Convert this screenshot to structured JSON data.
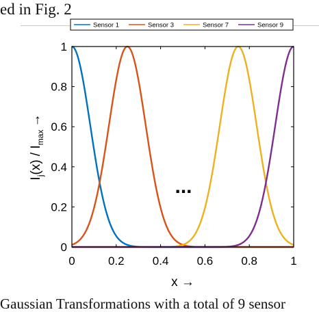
{
  "page": {
    "top_text": "ed in Fig. 2",
    "bottom_text": "Gaussian Transformations with a total of 9 sensor"
  },
  "chart_data": {
    "type": "line",
    "xlabel": "x →",
    "ylabel_main": "I",
    "ylabel_sub_j": "j",
    "ylabel_mid": "(x) / I",
    "ylabel_sub_max": "max",
    "ylabel_arrow": "→",
    "xlim": [
      0,
      1
    ],
    "ylim": [
      0,
      1
    ],
    "xticks": [
      0,
      0.2,
      0.4,
      0.6,
      0.8,
      1
    ],
    "xtick_labels": [
      "0",
      "0.2",
      "0.4",
      "0.6",
      "0.8",
      "1"
    ],
    "yticks": [
      0,
      0.2,
      0.4,
      0.6,
      0.8,
      1
    ],
    "ytick_labels": [
      "0",
      "0.2",
      "0.4",
      "0.6",
      "0.8",
      "1"
    ],
    "grid": false,
    "legend_position": "top",
    "legend_orientation": "horizontal",
    "annotation": "...",
    "series": [
      {
        "name": "Sensor 1",
        "color": "#0072BD",
        "center": 0,
        "x": [
          0,
          0.025,
          0.05,
          0.075,
          0.1,
          0.125,
          0.15,
          0.175,
          0.2,
          0.25,
          0.3,
          0.4,
          0.5,
          0.6,
          0.7,
          0.8,
          0.9,
          1
        ],
        "y": [
          1,
          0.94,
          0.78,
          0.57,
          0.37,
          0.21,
          0.1,
          0.04,
          0.02,
          0,
          0,
          0,
          0,
          0,
          0,
          0,
          0,
          0
        ]
      },
      {
        "name": "Sensor 3",
        "color": "#D95319",
        "center": 0.25,
        "x": [
          0,
          0.05,
          0.1,
          0.125,
          0.15,
          0.175,
          0.2,
          0.225,
          0.25,
          0.275,
          0.3,
          0.325,
          0.35,
          0.375,
          0.4,
          0.45,
          0.5,
          0.6,
          0.8,
          1
        ],
        "y": [
          0,
          0.02,
          0.1,
          0.21,
          0.37,
          0.57,
          0.78,
          0.94,
          1,
          0.94,
          0.78,
          0.57,
          0.37,
          0.21,
          0.1,
          0.02,
          0,
          0,
          0,
          0
        ]
      },
      {
        "name": "Sensor 7",
        "color": "#EDB120",
        "center": 0.75,
        "x": [
          0,
          0.2,
          0.4,
          0.5,
          0.55,
          0.6,
          0.625,
          0.65,
          0.675,
          0.7,
          0.725,
          0.75,
          0.775,
          0.8,
          0.825,
          0.85,
          0.875,
          0.9,
          0.95,
          1
        ],
        "y": [
          0,
          0,
          0,
          0,
          0.02,
          0.1,
          0.21,
          0.37,
          0.57,
          0.78,
          0.94,
          1,
          0.94,
          0.78,
          0.57,
          0.37,
          0.21,
          0.1,
          0.02,
          0
        ]
      },
      {
        "name": "Sensor 9",
        "color": "#7E2F8E",
        "center": 1,
        "x": [
          0,
          0.2,
          0.4,
          0.6,
          0.7,
          0.75,
          0.8,
          0.825,
          0.85,
          0.875,
          0.9,
          0.925,
          0.95,
          0.975,
          1
        ],
        "y": [
          0,
          0,
          0,
          0,
          0,
          0,
          0.02,
          0.04,
          0.1,
          0.21,
          0.37,
          0.57,
          0.78,
          0.94,
          1
        ]
      }
    ]
  }
}
